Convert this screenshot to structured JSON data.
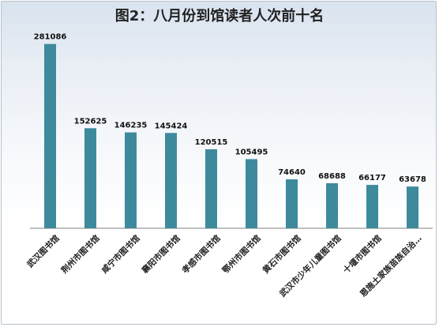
{
  "chart_data": {
    "type": "bar",
    "title": "图2：八月份到馆读者人次前十名",
    "categories": [
      "武汉图书馆",
      "荆州市图书馆",
      "咸宁市图书馆",
      "襄阳市图书馆",
      "孝感市图书馆",
      "鄂州市图书馆",
      "黄石市图书馆",
      "武汉市少年儿童图书馆",
      "十堰市图书馆",
      "恩施土家族苗族自治…"
    ],
    "values": [
      281086,
      152625,
      146235,
      145424,
      120515,
      105495,
      74640,
      68688,
      66177,
      63678
    ],
    "xlabel": "",
    "ylabel": "",
    "ylim": [
      0,
      300000
    ],
    "grid": false,
    "legend": "none",
    "colors": {
      "bar": "#3e8a9d",
      "axis": "#7f7f7f"
    }
  }
}
